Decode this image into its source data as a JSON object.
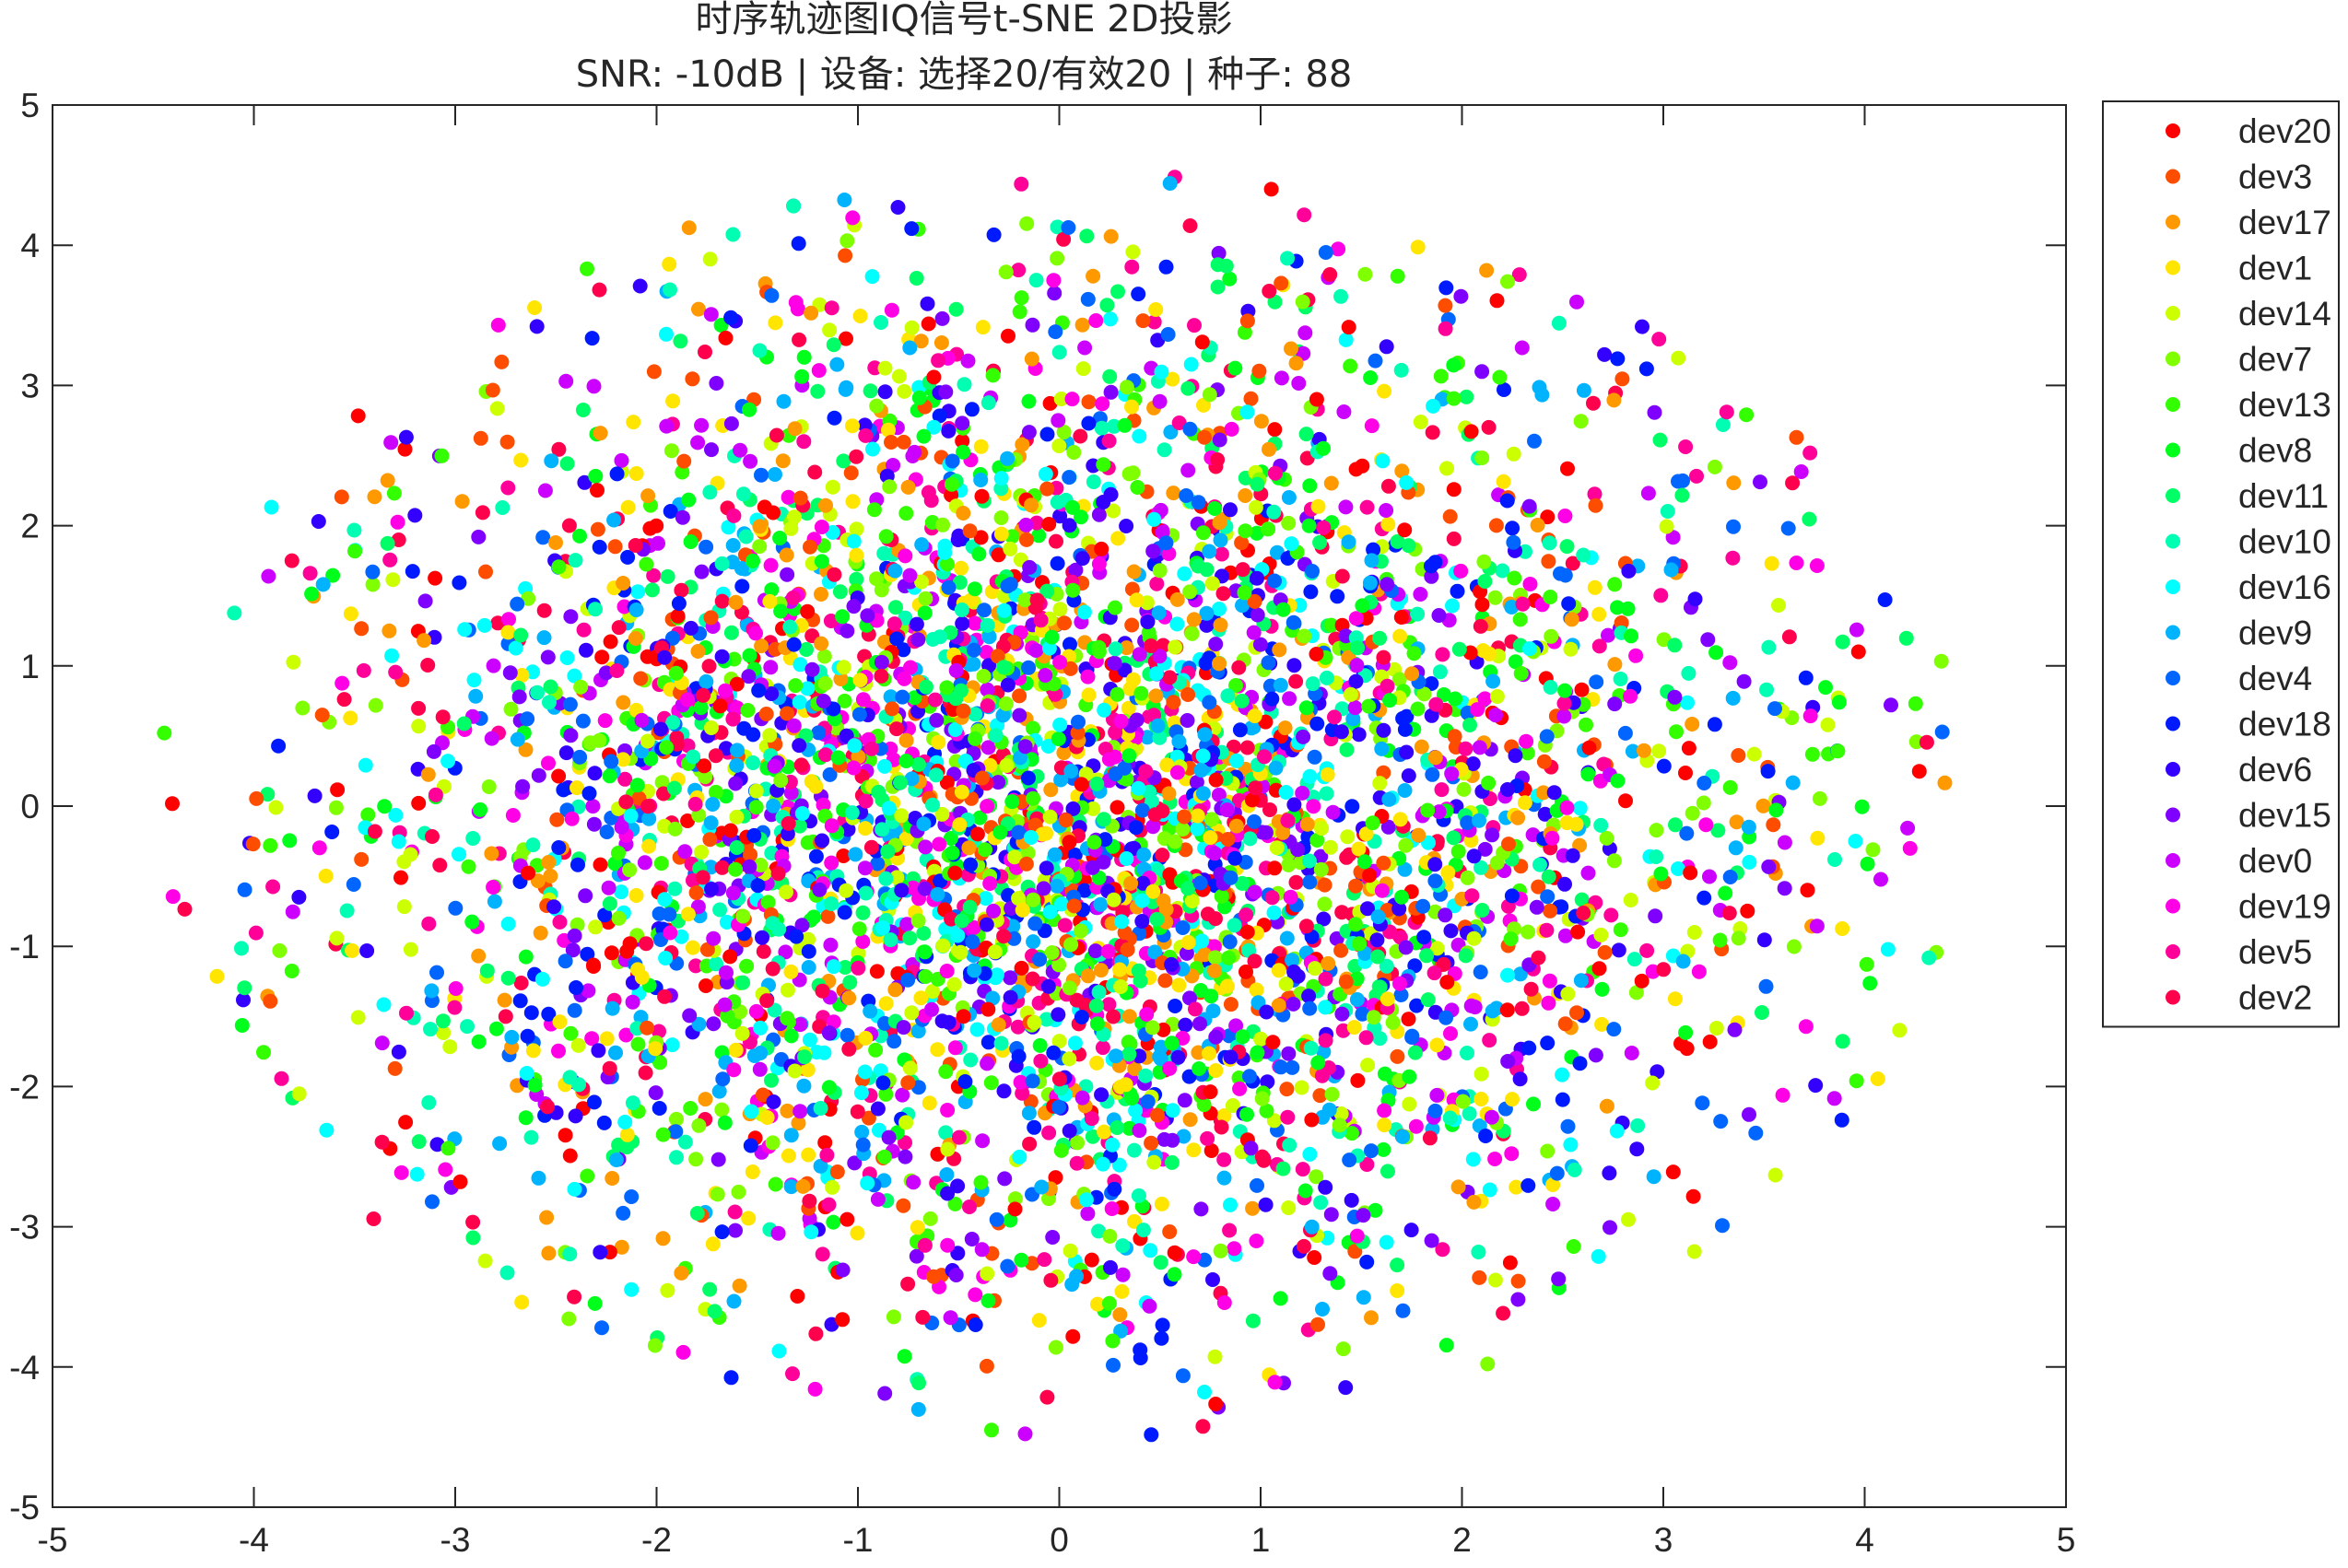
{
  "chart_data": {
    "type": "scatter",
    "title": "时序轨迹图IQ信号t-SNE 2D投影",
    "subtitle": "SNR: -10dB | 设备: 选择20/有效20 | 种子: 88",
    "xlabel": "",
    "ylabel": "",
    "xlim": [
      -5,
      5
    ],
    "ylim": [
      -5,
      5
    ],
    "x_ticks": [
      -5,
      -4,
      -3,
      -2,
      -1,
      0,
      1,
      2,
      3,
      4,
      5
    ],
    "y_ticks": [
      -5,
      -4,
      -3,
      -2,
      -1,
      0,
      1,
      2,
      3,
      4,
      5
    ],
    "grid": false,
    "legend_position": "outside-right-top",
    "point_distribution": "dense overlapping cloud, roughly elliptical, centered near (0, 0), spanning x about -4.4 to 4.6 and y about -4.6 to 4.6; all devices intermixed",
    "points_per_series_estimate": 250,
    "random_seed": 88,
    "series": [
      {
        "name": "dev20",
        "color": "#ff0000"
      },
      {
        "name": "dev3",
        "color": "#ff4d00"
      },
      {
        "name": "dev17",
        "color": "#ff9900"
      },
      {
        "name": "dev1",
        "color": "#ffe500"
      },
      {
        "name": "dev14",
        "color": "#ccff00"
      },
      {
        "name": "dev7",
        "color": "#80ff00"
      },
      {
        "name": "dev13",
        "color": "#33ff00"
      },
      {
        "name": "dev8",
        "color": "#00ff1a"
      },
      {
        "name": "dev11",
        "color": "#00ff66"
      },
      {
        "name": "dev10",
        "color": "#00ffb3"
      },
      {
        "name": "dev16",
        "color": "#00ffff"
      },
      {
        "name": "dev9",
        "color": "#00b3ff"
      },
      {
        "name": "dev4",
        "color": "#0066ff"
      },
      {
        "name": "dev18",
        "color": "#001aff"
      },
      {
        "name": "dev6",
        "color": "#3300ff"
      },
      {
        "name": "dev15",
        "color": "#8000ff"
      },
      {
        "name": "dev0",
        "color": "#cc00ff"
      },
      {
        "name": "dev19",
        "color": "#ff00e6"
      },
      {
        "name": "dev5",
        "color": "#ff0099"
      },
      {
        "name": "dev2",
        "color": "#ff004d"
      }
    ]
  }
}
